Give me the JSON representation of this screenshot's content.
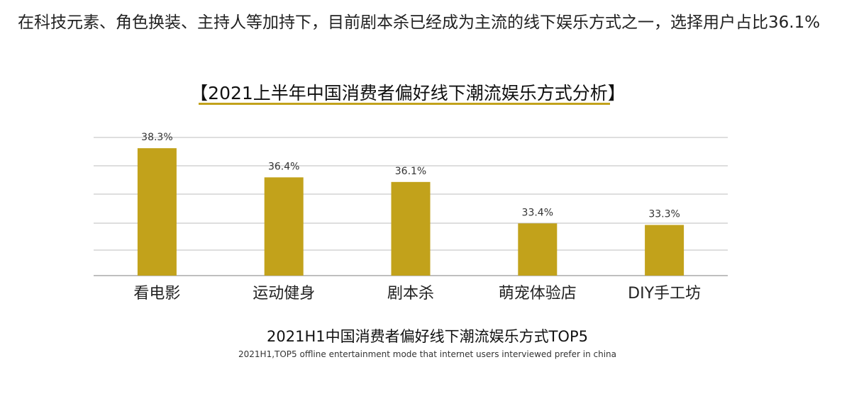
{
  "intro": {
    "text": "在科技元素、角色换装、主持人等加持下，目前剧本杀已经成为主流的线下娱乐方式之一，选择用户占比36.1%"
  },
  "colors": {
    "bar": "#c2a21b",
    "grid": "#bdbdbd",
    "accent": "#c2a21b"
  },
  "chart_data": {
    "type": "bar",
    "title": "【2021上半年中国消费者偏好线下潮流娱乐方式分析】",
    "categories": [
      "看电影",
      "运动健身",
      "剧本杀",
      "萌宠体验店",
      "DIY手工坊"
    ],
    "values": [
      38.3,
      36.4,
      36.1,
      33.4,
      33.3
    ],
    "value_labels": [
      "38.3%",
      "36.4%",
      "36.1%",
      "33.4%",
      "33.3%"
    ],
    "ylim": [
      30,
      39
    ],
    "grid": true,
    "legend": "none"
  },
  "caption": {
    "main": "2021H1中国消费者偏好线下潮流娱乐方式TOP5",
    "sub": "2021H1,TOP5 offline entertainment mode that internet users interviewed prefer in china"
  }
}
